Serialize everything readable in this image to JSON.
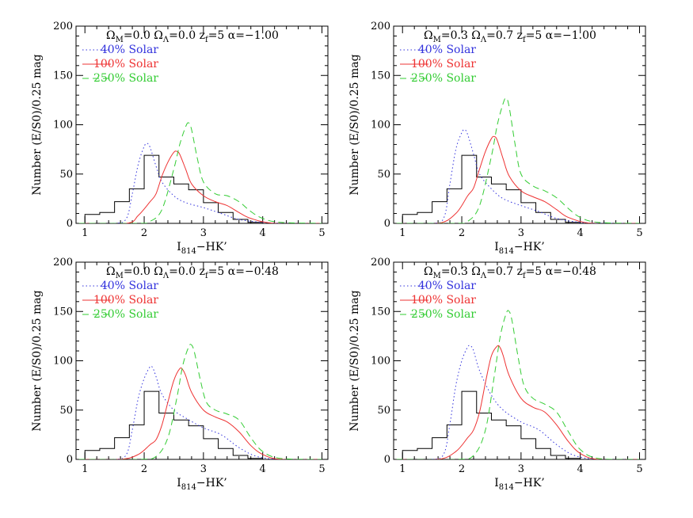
{
  "chart_data": [
    {
      "type": "line",
      "panel": "top-left",
      "title_parts": {
        "om": "0.0",
        "ol": "0.0",
        "zf": "5",
        "alpha": "-1.00"
      },
      "xlabel": "I814-HK'",
      "ylabel": "Number (E/S0)/0.25 mag",
      "xlim": [
        0.85,
        5.1
      ],
      "ylim": [
        0,
        200
      ],
      "xticks": [
        1,
        2,
        3,
        4,
        5
      ],
      "yticks": [
        0,
        50,
        100,
        150,
        200
      ],
      "legend": [
        {
          "label": "40% Solar",
          "color": "#3333dd",
          "dash": "dotted"
        },
        {
          "label": "100% Solar",
          "color": "#ee3333",
          "dash": "solid"
        },
        {
          "label": "250% Solar",
          "color": "#33cc33",
          "dash": "dashed"
        }
      ],
      "histogram": {
        "edges": [
          1.0,
          1.25,
          1.5,
          1.75,
          2.0,
          2.25,
          2.5,
          2.75,
          3.0,
          3.25,
          3.5,
          3.75,
          4.0
        ],
        "counts": [
          9,
          11,
          22,
          35,
          69,
          47,
          40,
          34,
          21,
          11,
          4,
          1
        ]
      },
      "series": [
        {
          "name": "40% Solar",
          "x": [
            0.9,
            1.5,
            1.7,
            1.8,
            1.9,
            2.0,
            2.05,
            2.1,
            2.2,
            2.3,
            2.5,
            2.7,
            3.0,
            3.3,
            3.6,
            4.0,
            4.5,
            5.0
          ],
          "y": [
            0,
            0,
            5,
            30,
            60,
            78,
            81,
            77,
            58,
            42,
            28,
            21,
            16,
            10,
            4,
            1,
            0,
            0
          ]
        },
        {
          "name": "100% Solar",
          "x": [
            0.9,
            1.7,
            1.9,
            2.1,
            2.2,
            2.3,
            2.4,
            2.5,
            2.55,
            2.6,
            2.7,
            2.8,
            3.0,
            3.2,
            3.4,
            3.6,
            3.8,
            4.2,
            5.0
          ],
          "y": [
            0,
            0,
            8,
            22,
            30,
            48,
            62,
            72,
            73,
            70,
            55,
            40,
            28,
            22,
            18,
            11,
            5,
            0,
            0
          ]
        },
        {
          "name": "250% Solar",
          "x": [
            0.9,
            1.9,
            2.1,
            2.3,
            2.5,
            2.6,
            2.7,
            2.75,
            2.8,
            2.9,
            3.0,
            3.2,
            3.4,
            3.6,
            3.8,
            4.0,
            4.3,
            5.0
          ],
          "y": [
            0,
            0,
            2,
            14,
            55,
            80,
            98,
            102,
            95,
            65,
            42,
            30,
            28,
            22,
            12,
            5,
            1,
            0
          ]
        }
      ]
    },
    {
      "type": "line",
      "panel": "top-right",
      "title_parts": {
        "om": "0.3",
        "ol": "0.7",
        "zf": "5",
        "alpha": "-1.00"
      },
      "xlabel": "I814-HK'",
      "ylabel": "Number (E/S0)/0.25 mag",
      "xlim": [
        0.85,
        5.1
      ],
      "ylim": [
        0,
        200
      ],
      "xticks": [
        1,
        2,
        3,
        4,
        5
      ],
      "yticks": [
        0,
        50,
        100,
        150,
        200
      ],
      "legend": [
        {
          "label": "40% Solar",
          "color": "#3333dd",
          "dash": "dotted"
        },
        {
          "label": "100% Solar",
          "color": "#ee3333",
          "dash": "solid"
        },
        {
          "label": "250% Solar",
          "color": "#33cc33",
          "dash": "dashed"
        }
      ],
      "histogram": {
        "edges": [
          1.0,
          1.25,
          1.5,
          1.75,
          2.0,
          2.25,
          2.5,
          2.75,
          3.0,
          3.25,
          3.5,
          3.75,
          4.0
        ],
        "counts": [
          9,
          11,
          22,
          35,
          69,
          47,
          40,
          34,
          21,
          11,
          4,
          1
        ]
      },
      "series": [
        {
          "name": "40% Solar",
          "x": [
            0.9,
            1.5,
            1.7,
            1.8,
            1.9,
            2.0,
            2.05,
            2.1,
            2.2,
            2.3,
            2.5,
            2.7,
            3.0,
            3.3,
            3.6,
            4.0,
            4.5,
            5.0
          ],
          "y": [
            0,
            0,
            6,
            40,
            75,
            92,
            95,
            90,
            70,
            50,
            35,
            25,
            18,
            12,
            5,
            1,
            0,
            0
          ]
        },
        {
          "name": "100% Solar",
          "x": [
            0.9,
            1.6,
            1.9,
            2.1,
            2.2,
            2.3,
            2.4,
            2.5,
            2.55,
            2.6,
            2.7,
            2.8,
            3.0,
            3.2,
            3.4,
            3.6,
            3.8,
            4.2,
            5.0
          ],
          "y": [
            0,
            0,
            10,
            28,
            36,
            55,
            73,
            86,
            88,
            84,
            65,
            48,
            33,
            27,
            22,
            14,
            6,
            0,
            0
          ]
        },
        {
          "name": "250% Solar",
          "x": [
            0.9,
            1.9,
            2.1,
            2.3,
            2.5,
            2.6,
            2.7,
            2.75,
            2.8,
            2.9,
            3.0,
            3.2,
            3.4,
            3.6,
            3.8,
            4.0,
            4.3,
            5.0
          ],
          "y": [
            0,
            0,
            2,
            18,
            68,
            100,
            122,
            127,
            118,
            80,
            50,
            38,
            33,
            26,
            15,
            6,
            1,
            0
          ]
        }
      ]
    },
    {
      "type": "line",
      "panel": "bottom-left",
      "title_parts": {
        "om": "0.0",
        "ol": "0.0",
        "zf": "5",
        "alpha": "-0.48"
      },
      "xlabel": "I814-HK'",
      "ylabel": "Number (E/S0)/0.25 mag",
      "xlim": [
        0.85,
        5.1
      ],
      "ylim": [
        0,
        200
      ],
      "xticks": [
        1,
        2,
        3,
        4,
        5
      ],
      "yticks": [
        0,
        50,
        100,
        150,
        200
      ],
      "legend": [
        {
          "label": "40% Solar",
          "color": "#3333dd",
          "dash": "dotted"
        },
        {
          "label": "100% Solar",
          "color": "#ee3333",
          "dash": "solid"
        },
        {
          "label": "250% Solar",
          "color": "#33cc33",
          "dash": "dashed"
        }
      ],
      "histogram": {
        "edges": [
          1.0,
          1.25,
          1.5,
          1.75,
          2.0,
          2.25,
          2.5,
          2.75,
          3.0,
          3.25,
          3.5,
          3.75,
          4.0
        ],
        "counts": [
          9,
          11,
          22,
          35,
          69,
          47,
          40,
          34,
          21,
          11,
          4,
          1
        ]
      },
      "series": [
        {
          "name": "40% Solar",
          "x": [
            0.9,
            1.5,
            1.7,
            1.8,
            1.9,
            2.0,
            2.1,
            2.15,
            2.2,
            2.3,
            2.5,
            2.7,
            3.0,
            3.3,
            3.6,
            3.9,
            4.3,
            5.0
          ],
          "y": [
            0,
            0,
            5,
            30,
            62,
            82,
            94,
            92,
            84,
            66,
            50,
            42,
            32,
            25,
            12,
            3,
            0,
            0
          ]
        },
        {
          "name": "100% Solar",
          "x": [
            0.9,
            1.6,
            1.9,
            2.1,
            2.2,
            2.3,
            2.4,
            2.5,
            2.6,
            2.65,
            2.7,
            2.8,
            3.0,
            3.2,
            3.4,
            3.6,
            3.8,
            4.0,
            4.3,
            5.0
          ],
          "y": [
            0,
            0,
            5,
            15,
            20,
            35,
            58,
            80,
            92,
            91,
            85,
            68,
            50,
            43,
            38,
            28,
            14,
            5,
            0,
            0
          ]
        },
        {
          "name": "250% Solar",
          "x": [
            0.9,
            1.9,
            2.2,
            2.4,
            2.55,
            2.65,
            2.75,
            2.8,
            2.85,
            2.95,
            3.05,
            3.2,
            3.4,
            3.6,
            3.8,
            4.0,
            4.3,
            5.0
          ],
          "y": [
            0,
            0,
            3,
            22,
            62,
            95,
            114,
            116,
            108,
            80,
            58,
            50,
            46,
            40,
            22,
            8,
            1,
            0
          ]
        }
      ]
    },
    {
      "type": "line",
      "panel": "bottom-right",
      "title_parts": {
        "om": "0.3",
        "ol": "0.7",
        "zf": "5",
        "alpha": "-0.48"
      },
      "xlabel": "I814-HK'",
      "ylabel": "Number (E/S0)/0.25 mag",
      "xlim": [
        0.85,
        5.1
      ],
      "ylim": [
        0,
        200
      ],
      "xticks": [
        1,
        2,
        3,
        4,
        5
      ],
      "yticks": [
        0,
        50,
        100,
        150,
        200
      ],
      "legend": [
        {
          "label": "40% Solar",
          "color": "#3333dd",
          "dash": "dotted"
        },
        {
          "label": "100% Solar",
          "color": "#ee3333",
          "dash": "solid"
        },
        {
          "label": "250% Solar",
          "color": "#33cc33",
          "dash": "dashed"
        }
      ],
      "histogram": {
        "edges": [
          1.0,
          1.25,
          1.5,
          1.75,
          2.0,
          2.25,
          2.5,
          2.75,
          3.0,
          3.25,
          3.5,
          3.75,
          4.0
        ],
        "counts": [
          9,
          11,
          22,
          35,
          69,
          47,
          40,
          34,
          21,
          11,
          4,
          1
        ]
      },
      "series": [
        {
          "name": "40% Solar",
          "x": [
            0.9,
            1.5,
            1.7,
            1.8,
            1.9,
            2.0,
            2.1,
            2.15,
            2.2,
            2.3,
            2.5,
            2.7,
            3.0,
            3.3,
            3.6,
            3.9,
            4.3,
            5.0
          ],
          "y": [
            0,
            0,
            6,
            36,
            75,
            100,
            114,
            115,
            110,
            90,
            65,
            50,
            38,
            30,
            15,
            4,
            0,
            0
          ]
        },
        {
          "name": "100% Solar",
          "x": [
            0.9,
            1.6,
            1.9,
            2.1,
            2.2,
            2.3,
            2.4,
            2.5,
            2.6,
            2.65,
            2.7,
            2.8,
            3.0,
            3.2,
            3.4,
            3.6,
            3.8,
            4.0,
            4.3,
            5.0
          ],
          "y": [
            0,
            0,
            8,
            22,
            30,
            48,
            78,
            105,
            115,
            113,
            105,
            85,
            62,
            53,
            48,
            35,
            18,
            6,
            0,
            0
          ]
        },
        {
          "name": "250% Solar",
          "x": [
            0.9,
            1.9,
            2.2,
            2.4,
            2.55,
            2.65,
            2.75,
            2.8,
            2.85,
            2.95,
            3.05,
            3.2,
            3.4,
            3.6,
            3.8,
            4.0,
            4.3,
            5.0
          ],
          "y": [
            0,
            0,
            4,
            30,
            85,
            125,
            148,
            150,
            140,
            104,
            75,
            62,
            56,
            48,
            28,
            10,
            1,
            0
          ]
        }
      ]
    }
  ]
}
